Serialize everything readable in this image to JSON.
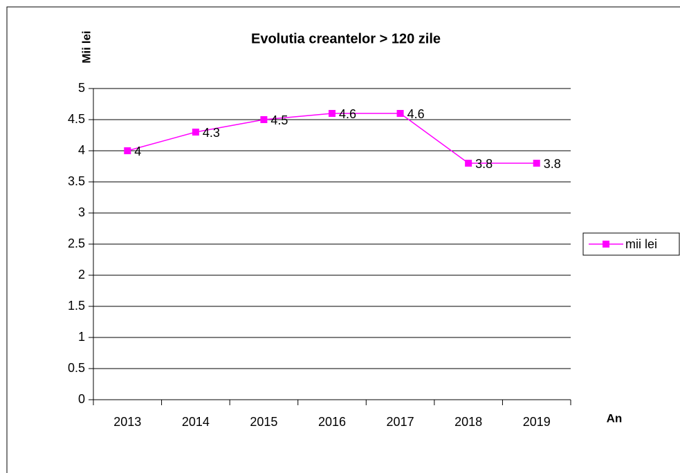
{
  "chart_data": {
    "type": "line",
    "title": "Evolutia creantelor > 120 zile",
    "y_label": "Mii lei",
    "x_label": "An",
    "categories": [
      "2013",
      "2014",
      "2015",
      "2016",
      "2017",
      "2018",
      "2019"
    ],
    "series": [
      {
        "name": "mii lei",
        "color": "#ff00ff",
        "values": [
          4,
          4.3,
          4.5,
          4.6,
          4.6,
          3.8,
          3.8
        ]
      }
    ],
    "ylim": [
      0,
      5
    ],
    "yticks": [
      0,
      0.5,
      1,
      1.5,
      2,
      2.5,
      3,
      3.5,
      4,
      4.5,
      5
    ],
    "grid": true,
    "legend": "right"
  }
}
